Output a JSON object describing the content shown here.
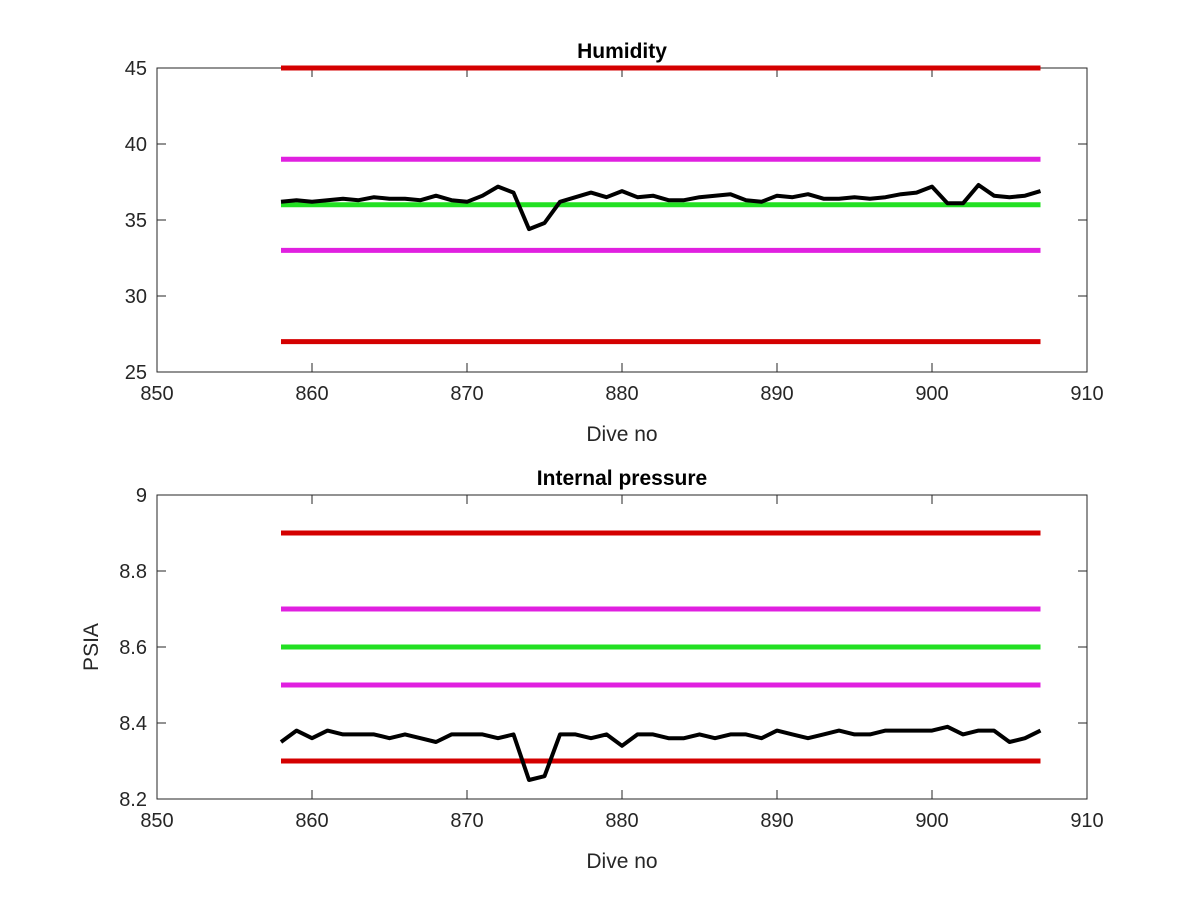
{
  "chart_data": [
    {
      "type": "line",
      "title": "Humidity",
      "xlabel": "Dive no",
      "ylabel": "",
      "xlim": [
        850,
        910
      ],
      "ylim": [
        25,
        45
      ],
      "xticks": [
        "850",
        "860",
        "870",
        "880",
        "890",
        "900",
        "910"
      ],
      "yticks": [
        "25",
        "30",
        "35",
        "40",
        "45"
      ],
      "grid": false,
      "legend": false,
      "reference_lines": [
        {
          "y": 45,
          "x_range": [
            858,
            907
          ],
          "color": "#d40000"
        },
        {
          "y": 39,
          "x_range": [
            858,
            907
          ],
          "color": "#e020e0"
        },
        {
          "y": 36,
          "x_range": [
            858,
            907
          ],
          "color": "#22e022"
        },
        {
          "y": 33,
          "x_range": [
            858,
            907
          ],
          "color": "#e020e0"
        },
        {
          "y": 27,
          "x_range": [
            858,
            907
          ],
          "color": "#d40000"
        }
      ],
      "series": [
        {
          "color": "#000000",
          "x": [
            858,
            859,
            860,
            861,
            862,
            863,
            864,
            865,
            866,
            867,
            868,
            869,
            870,
            871,
            872,
            873,
            874,
            875,
            876,
            877,
            878,
            879,
            880,
            881,
            882,
            883,
            884,
            885,
            886,
            887,
            888,
            889,
            890,
            891,
            892,
            893,
            894,
            895,
            896,
            897,
            898,
            899,
            900,
            901,
            902,
            903,
            904,
            905,
            906,
            907
          ],
          "y": [
            36.2,
            36.3,
            36.2,
            36.3,
            36.4,
            36.3,
            36.5,
            36.4,
            36.4,
            36.3,
            36.6,
            36.3,
            36.2,
            36.6,
            37.2,
            36.8,
            34.4,
            34.8,
            36.2,
            36.5,
            36.8,
            36.5,
            36.9,
            36.5,
            36.6,
            36.3,
            36.3,
            36.5,
            36.6,
            36.7,
            36.3,
            36.2,
            36.6,
            36.5,
            36.7,
            36.4,
            36.4,
            36.5,
            36.4,
            36.5,
            36.7,
            36.8,
            37.2,
            36.1,
            36.1,
            37.3,
            36.6,
            36.5,
            36.6,
            36.9
          ]
        }
      ]
    },
    {
      "type": "line",
      "title": "Internal pressure",
      "xlabel": "Dive no",
      "ylabel": "PSIA",
      "xlim": [
        850,
        910
      ],
      "ylim": [
        8.2,
        9.0
      ],
      "xticks": [
        "850",
        "860",
        "870",
        "880",
        "890",
        "900",
        "910"
      ],
      "yticks": [
        "8.2",
        "8.4",
        "8.6",
        "8.8",
        "9"
      ],
      "grid": false,
      "legend": false,
      "reference_lines": [
        {
          "y": 8.9,
          "x_range": [
            858,
            907
          ],
          "color": "#d40000"
        },
        {
          "y": 8.7,
          "x_range": [
            858,
            907
          ],
          "color": "#e020e0"
        },
        {
          "y": 8.6,
          "x_range": [
            858,
            907
          ],
          "color": "#22e022"
        },
        {
          "y": 8.5,
          "x_range": [
            858,
            907
          ],
          "color": "#e020e0"
        },
        {
          "y": 8.3,
          "x_range": [
            858,
            907
          ],
          "color": "#d40000"
        }
      ],
      "series": [
        {
          "color": "#000000",
          "x": [
            858,
            859,
            860,
            861,
            862,
            863,
            864,
            865,
            866,
            867,
            868,
            869,
            870,
            871,
            872,
            873,
            874,
            875,
            876,
            877,
            878,
            879,
            880,
            881,
            882,
            883,
            884,
            885,
            886,
            887,
            888,
            889,
            890,
            891,
            892,
            893,
            894,
            895,
            896,
            897,
            898,
            899,
            900,
            901,
            902,
            903,
            904,
            905,
            906,
            907
          ],
          "y": [
            8.35,
            8.38,
            8.36,
            8.38,
            8.37,
            8.37,
            8.37,
            8.36,
            8.37,
            8.36,
            8.35,
            8.37,
            8.37,
            8.37,
            8.36,
            8.37,
            8.25,
            8.26,
            8.37,
            8.37,
            8.36,
            8.37,
            8.34,
            8.37,
            8.37,
            8.36,
            8.36,
            8.37,
            8.36,
            8.37,
            8.37,
            8.36,
            8.38,
            8.37,
            8.36,
            8.37,
            8.38,
            8.37,
            8.37,
            8.38,
            8.38,
            8.38,
            8.38,
            8.39,
            8.37,
            8.38,
            8.38,
            8.35,
            8.36,
            8.38
          ]
        }
      ]
    }
  ]
}
